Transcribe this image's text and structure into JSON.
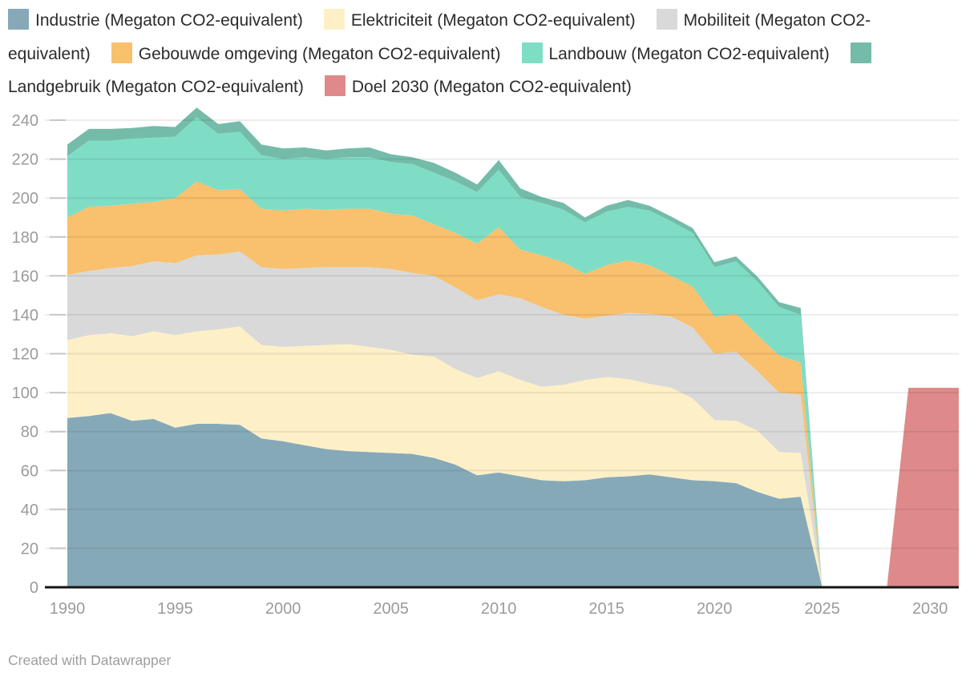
{
  "footer": {
    "credit": "Created with Datawrapper"
  },
  "legend": {
    "items": [
      {
        "slug": "industrie",
        "label": "Industrie (Megaton CO2-equivalent)",
        "color": "#86a9b8"
      },
      {
        "slug": "elektriciteit",
        "label": "Elektriciteit (Megaton CO2-equivalent)",
        "color": "#fdf0c7"
      },
      {
        "slug": "mobiliteit",
        "label": "Mobiliteit (Megaton CO2-equivalent)",
        "color": "#d9d9d9"
      },
      {
        "slug": "gebouwde-omgeving",
        "label": "Gebouwde omgeving (Megaton CO2-equivalent)",
        "color": "#f9c06e"
      },
      {
        "slug": "landbouw",
        "label": "Landbouw (Megaton CO2-equivalent)",
        "color": "#7fddc6"
      },
      {
        "slug": "landgebruik",
        "label": "Landgebruik (Megaton CO2-equivalent)",
        "color": "#74bca9"
      },
      {
        "slug": "doel-2030",
        "label": "Doel 2030 (Megaton CO2-equivalent)",
        "color": "#de8a8a"
      }
    ]
  },
  "chart_data": {
    "type": "area",
    "stacked": true,
    "unit": "Megaton CO2-equivalent",
    "background": "#ffffff",
    "x_years": [
      1990,
      1991,
      1992,
      1993,
      1994,
      1995,
      1996,
      1997,
      1998,
      1999,
      2000,
      2001,
      2002,
      2003,
      2004,
      2005,
      2006,
      2007,
      2008,
      2009,
      2010,
      2011,
      2012,
      2013,
      2014,
      2015,
      2016,
      2017,
      2018,
      2019,
      2020,
      2021,
      2022,
      2023,
      2024,
      2025
    ],
    "series": [
      {
        "slug": "industrie",
        "name": "Industrie",
        "color": "#86a9b8",
        "values": [
          87,
          88,
          89.5,
          85.5,
          86.5,
          82,
          84,
          84,
          83.5,
          76.5,
          75,
          73,
          71,
          70,
          69.5,
          69,
          68.5,
          66.5,
          63,
          57.5,
          59,
          57,
          55,
          54.5,
          55,
          56.5,
          57,
          58,
          56.5,
          55,
          54.5,
          53.5,
          49,
          45.5,
          46.5,
          0
        ]
      },
      {
        "slug": "elektriciteit",
        "name": "Elektriciteit",
        "color": "#fdf0c7",
        "values": [
          40,
          41.5,
          41,
          43.5,
          45,
          47.5,
          47.5,
          48.5,
          50.5,
          48,
          48.5,
          51,
          53.5,
          55,
          54,
          53,
          51,
          52,
          49,
          50,
          52,
          49.5,
          48,
          49.5,
          51.5,
          51.5,
          50,
          46.5,
          46,
          42,
          31.5,
          32,
          31.5,
          24,
          22.5,
          0
        ]
      },
      {
        "slug": "mobiliteit",
        "name": "Mobiliteit",
        "color": "#d9d9d9",
        "values": [
          33.5,
          33,
          33.5,
          36,
          36,
          37,
          39,
          38.5,
          38.5,
          40,
          40,
          40,
          40,
          39.5,
          41,
          41.5,
          42,
          41.5,
          42,
          40,
          39.5,
          42,
          41,
          36,
          31.5,
          31.5,
          34,
          36,
          36.5,
          36.5,
          34,
          35.5,
          30.5,
          30.5,
          30,
          0
        ]
      },
      {
        "slug": "gebouwde-omgeving",
        "name": "Gebouwde omgeving",
        "color": "#f9c06e",
        "values": [
          29.5,
          33,
          32,
          32,
          30.5,
          33.5,
          38,
          33,
          32,
          30,
          30,
          30.5,
          29.5,
          30,
          30,
          28.5,
          29.5,
          26.5,
          28,
          29,
          34.5,
          25,
          26.5,
          27,
          23,
          26,
          27,
          25,
          21,
          21,
          19,
          19.5,
          18.5,
          19,
          16.5,
          0
        ]
      },
      {
        "slug": "landbouw",
        "name": "Landbouw",
        "color": "#7fddc6",
        "values": [
          31.5,
          34,
          33.5,
          33.5,
          33,
          31.5,
          33,
          29,
          29.5,
          27.5,
          26.5,
          26.5,
          26,
          26.5,
          26.5,
          26.5,
          26.5,
          26.5,
          26.5,
          26.5,
          29.5,
          27,
          27,
          27,
          26.5,
          27.5,
          27.5,
          28,
          28,
          27.5,
          25.5,
          27,
          27.5,
          25,
          24.5,
          0
        ]
      },
      {
        "slug": "landgebruik",
        "name": "Landgebruik",
        "color": "#74bca9",
        "values": [
          6,
          6,
          6,
          5.5,
          6,
          5,
          5,
          5,
          5.5,
          5.5,
          5.5,
          5,
          4.5,
          4.5,
          5,
          4,
          3.5,
          5,
          4.5,
          4,
          5,
          4.5,
          3,
          3.5,
          2.5,
          3,
          3.5,
          2.5,
          2.5,
          2.5,
          2.5,
          2.5,
          2.5,
          2.5,
          3.5,
          0
        ]
      }
    ],
    "target": {
      "slug": "doel-2030",
      "name": "Doel 2030",
      "color": "#de8a8a",
      "value": 102.5,
      "polygon": [
        [
          2028,
          0
        ],
        [
          2029,
          102.5
        ],
        [
          2031.33,
          102.5
        ],
        [
          2031.33,
          0
        ]
      ]
    },
    "xlabel": "",
    "ylabel": "",
    "ylim": [
      0,
      240
    ],
    "xlim": [
      1990,
      2031.33
    ],
    "y_ticks": [
      0,
      20,
      40,
      60,
      80,
      100,
      120,
      140,
      160,
      180,
      200,
      220,
      240
    ],
    "x_ticks": [
      1990,
      1995,
      2000,
      2005,
      2010,
      2015,
      2020,
      2025,
      2030
    ],
    "grid": true,
    "legend_position": "top",
    "axis_color": "#9b9b9b",
    "gridline_color": "#ececec",
    "baseline_color": "#161616"
  }
}
